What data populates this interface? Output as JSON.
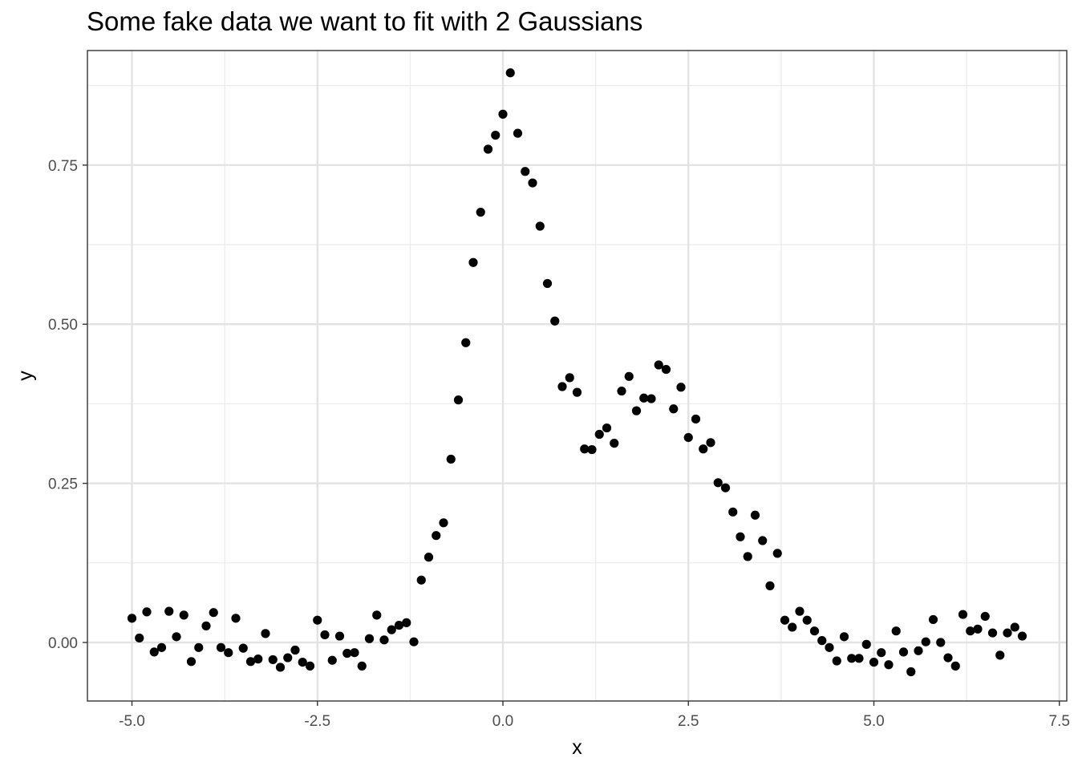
{
  "chart_data": {
    "type": "scatter",
    "title": "Some fake data we want to fit with 2 Gaussians",
    "xlabel": "x",
    "ylabel": "y",
    "xlim": [
      -5.6,
      7.6
    ],
    "ylim": [
      -0.092,
      0.93
    ],
    "x_ticks": [
      -5.0,
      -2.5,
      0.0,
      2.5,
      5.0,
      7.5
    ],
    "x_tick_labels": [
      "-5.0",
      "-2.5",
      "0.0",
      "2.5",
      "5.0",
      "7.5"
    ],
    "y_ticks": [
      0.0,
      0.25,
      0.5,
      0.75
    ],
    "y_tick_labels": [
      "0.00",
      "0.25",
      "0.50",
      "0.75"
    ],
    "grid": true,
    "point_color": "#000000",
    "x": [
      -5.0,
      -4.9,
      -4.8,
      -4.7,
      -4.6,
      -4.5,
      -4.4,
      -4.3,
      -4.2,
      -4.1,
      -4.0,
      -3.9,
      -3.8,
      -3.7,
      -3.6,
      -3.5,
      -3.4,
      -3.3,
      -3.2,
      -3.1,
      -3.0,
      -2.9,
      -2.8,
      -2.7,
      -2.6,
      -2.5,
      -2.4,
      -2.3,
      -2.2,
      -2.1,
      -2.0,
      -1.9,
      -1.8,
      -1.7,
      -1.6,
      -1.5,
      -1.4,
      -1.3,
      -1.2,
      -1.1,
      -1.0,
      -0.9,
      -0.8,
      -0.7,
      -0.6,
      -0.5,
      -0.4,
      -0.3,
      -0.2,
      -0.1,
      0.0,
      0.1,
      0.2,
      0.3,
      0.4,
      0.5,
      0.6,
      0.7,
      0.8,
      0.9,
      1.0,
      1.1,
      1.2,
      1.3,
      1.4,
      1.5,
      1.6,
      1.7,
      1.8,
      1.9,
      2.0,
      2.1,
      2.2,
      2.3,
      2.4,
      2.5,
      2.6,
      2.7,
      2.8,
      2.9,
      3.0,
      3.1,
      3.2,
      3.3,
      3.4,
      3.5,
      3.6,
      3.7,
      3.8,
      3.9,
      4.0,
      4.1,
      4.2,
      4.3,
      4.4,
      4.5,
      4.6,
      4.7,
      4.8,
      4.9,
      5.0,
      5.1,
      5.2,
      5.3,
      5.4,
      5.5,
      5.6,
      5.7,
      5.8,
      5.9,
      6.0,
      6.1,
      6.2,
      6.3,
      6.4,
      6.5,
      6.6,
      6.7,
      6.8,
      6.9,
      7.0
    ],
    "y": [
      0.038,
      0.007,
      0.048,
      -0.015,
      -0.008,
      0.049,
      0.009,
      0.043,
      -0.03,
      -0.008,
      0.026,
      0.047,
      -0.008,
      -0.016,
      0.038,
      -0.009,
      -0.03,
      -0.026,
      0.014,
      -0.027,
      -0.039,
      -0.024,
      -0.012,
      -0.031,
      -0.037,
      0.035,
      0.012,
      -0.028,
      0.01,
      -0.017,
      -0.016,
      -0.037,
      0.006,
      0.043,
      0.004,
      0.02,
      0.027,
      0.031,
      0.001,
      0.098,
      0.134,
      0.168,
      0.188,
      0.288,
      0.381,
      0.471,
      0.597,
      0.676,
      0.775,
      0.797,
      0.83,
      0.895,
      0.8,
      0.74,
      0.722,
      0.654,
      0.564,
      0.505,
      0.402,
      0.416,
      0.393,
      0.304,
      0.303,
      0.327,
      0.337,
      0.313,
      0.395,
      0.418,
      0.364,
      0.384,
      0.383,
      0.436,
      0.429,
      0.367,
      0.401,
      0.322,
      0.351,
      0.304,
      0.314,
      0.251,
      0.243,
      0.205,
      0.166,
      0.135,
      0.2,
      0.16,
      0.089,
      0.14,
      0.035,
      0.024,
      0.049,
      0.035,
      0.018,
      0.003,
      -0.008,
      -0.029,
      0.009,
      -0.025,
      -0.025,
      -0.003,
      -0.031,
      -0.016,
      -0.035,
      0.018,
      -0.015,
      -0.046,
      -0.013,
      0.001,
      0.036,
      0.0,
      -0.024,
      -0.037,
      0.044,
      0.018,
      0.021,
      0.041,
      0.015,
      -0.02,
      0.015,
      0.024,
      0.01
    ]
  }
}
